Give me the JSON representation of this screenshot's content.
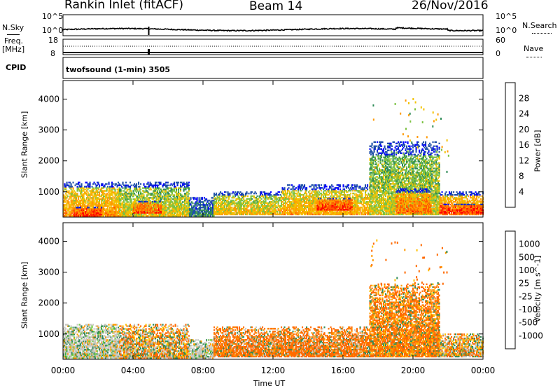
{
  "header": {
    "station": "Rankin Inlet (fitACF)",
    "beam": "Beam 14",
    "date": "26/Nov/2016"
  },
  "top_strip": {
    "nsky_label": "N.Sky",
    "nsearch_label": "N.Search",
    "left_ticks": [
      "10^5",
      "10^0"
    ],
    "right_ticks": [
      "10^5",
      "10^0"
    ],
    "freq_label": "Freq.",
    "freq_unit": "[MHz]",
    "nave_label": "Nave",
    "freq_ticks": [
      "18",
      "8"
    ],
    "nave_ticks": [
      "60",
      "0"
    ],
    "cpid_label": "CPID",
    "cpid_text": "twofsound (1-min) 3505"
  },
  "x_axis": {
    "label": "Time UT",
    "ticks": [
      "00:00",
      "04:00",
      "08:00",
      "12:00",
      "16:00",
      "20:00",
      "00:00"
    ]
  },
  "colors": {
    "power": [
      "#0000ff",
      "#2050a8",
      "#2e8b57",
      "#7cc242",
      "#f2c200",
      "#ff9a00",
      "#ff5a00",
      "#ff0000"
    ],
    "velocity": [
      "#0000ff",
      "#2050a8",
      "#2e8b57",
      "#6fcf3f",
      "#c8c8c0",
      "#ffc000",
      "#ff9a00",
      "#ff6a00",
      "#ff0000"
    ]
  },
  "chart_data": [
    {
      "type": "heatmap",
      "title": "Power",
      "xlabel": "Time UT",
      "ylabel": "Slant Range [km]",
      "xlim": [
        0,
        24
      ],
      "ylim": [
        180,
        4600
      ],
      "yticks": [
        "1000",
        "2000",
        "3000",
        "4000"
      ],
      "colorbar": {
        "label": "Power [dB]",
        "ticks": [
          "4",
          "8",
          "12",
          "16",
          "20",
          "24",
          "28"
        ],
        "range": [
          0,
          32
        ]
      },
      "regions": [
        {
          "t0": 0.0,
          "t1": 3.2,
          "r0": 200,
          "r1": 1300,
          "value": 22
        },
        {
          "t0": 0.6,
          "t1": 2.2,
          "r0": 200,
          "r1": 500,
          "value": 29
        },
        {
          "t0": 3.2,
          "t1": 7.2,
          "r0": 200,
          "r1": 1300,
          "value": 18
        },
        {
          "t0": 4.0,
          "t1": 5.6,
          "r0": 300,
          "r1": 700,
          "value": 27
        },
        {
          "t0": 7.2,
          "t1": 8.6,
          "r0": 200,
          "r1": 800,
          "value": 10
        },
        {
          "t0": 8.6,
          "t1": 12.5,
          "r0": 250,
          "r1": 1000,
          "value": 19
        },
        {
          "t0": 12.5,
          "t1": 17.5,
          "r0": 250,
          "r1": 1200,
          "value": 21
        },
        {
          "t0": 14.5,
          "t1": 16.5,
          "r0": 400,
          "r1": 800,
          "value": 28
        },
        {
          "t0": 17.5,
          "t1": 21.5,
          "r0": 250,
          "r1": 2600,
          "value": 17
        },
        {
          "t0": 19.0,
          "t1": 21.0,
          "r0": 300,
          "r1": 1100,
          "value": 25
        },
        {
          "t0": 21.5,
          "t1": 24.0,
          "r0": 250,
          "r1": 1000,
          "value": 24
        },
        {
          "t0": 21.5,
          "t1": 24.0,
          "r0": 300,
          "r1": 600,
          "value": 29
        }
      ]
    },
    {
      "type": "heatmap",
      "title": "Velocity",
      "xlabel": "Time UT",
      "ylabel": "Slant Range [km]",
      "xlim": [
        0,
        24
      ],
      "ylim": [
        180,
        4600
      ],
      "yticks": [
        "1000",
        "2000",
        "3000",
        "4000"
      ],
      "colorbar": {
        "label": "Velocity [m s^-1]",
        "ticks": [
          "1000",
          "500",
          "100",
          "25",
          "-25",
          "-100",
          "-500",
          "-1000"
        ]
      },
      "regions": [
        {
          "t0": 0.0,
          "t1": 3.2,
          "r0": 200,
          "r1": 1300,
          "class": "near-zero"
        },
        {
          "t0": 3.2,
          "t1": 7.2,
          "r0": 200,
          "r1": 1300,
          "class": "mixed"
        },
        {
          "t0": 7.2,
          "t1": 8.6,
          "r0": 200,
          "r1": 800,
          "class": "near-zero"
        },
        {
          "t0": 8.6,
          "t1": 17.5,
          "r0": 250,
          "r1": 1200,
          "class": "away-100"
        },
        {
          "t0": 17.5,
          "t1": 21.5,
          "r0": 250,
          "r1": 2600,
          "class": "away-500"
        },
        {
          "t0": 21.5,
          "t1": 24.0,
          "r0": 250,
          "r1": 1000,
          "class": "mixed"
        }
      ]
    }
  ]
}
